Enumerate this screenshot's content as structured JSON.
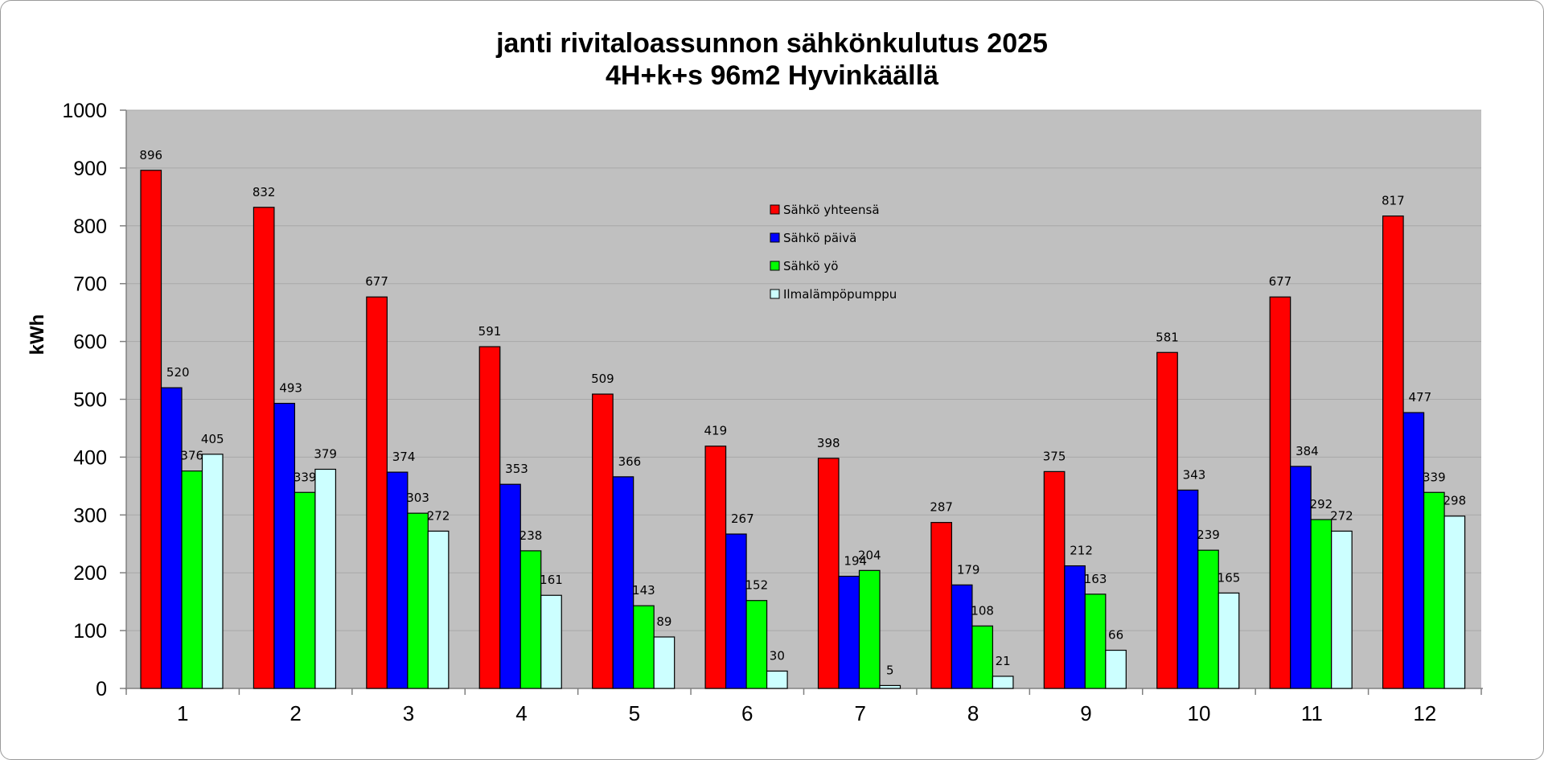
{
  "chart_data": {
    "type": "bar",
    "title": "janti rivitaloassunnon sähkönkulutus 2025",
    "subtitle": "4H+k+s 96m2 Hyvinkäällä",
    "xlabel": "",
    "ylabel": "kWh",
    "ylim": [
      0,
      1000
    ],
    "yticks": [
      0,
      100,
      200,
      300,
      400,
      500,
      600,
      700,
      800,
      900,
      1000
    ],
    "categories": [
      "1",
      "2",
      "3",
      "4",
      "5",
      "6",
      "7",
      "8",
      "9",
      "10",
      "11",
      "12"
    ],
    "series": [
      {
        "name": "Sähkö yhteensä",
        "color": "#ff0000",
        "values": [
          896,
          832,
          677,
          591,
          509,
          419,
          398,
          287,
          375,
          581,
          677,
          817
        ]
      },
      {
        "name": "Sähkö päivä",
        "color": "#0000ff",
        "values": [
          520,
          493,
          374,
          353,
          366,
          267,
          194,
          179,
          212,
          343,
          384,
          477
        ]
      },
      {
        "name": "Sähkö yö",
        "color": "#00ff00",
        "values": [
          376,
          339,
          303,
          238,
          143,
          152,
          204,
          108,
          163,
          239,
          292,
          339
        ]
      },
      {
        "name": "Ilmalämpöpumppu",
        "color": "#ccffff",
        "values": [
          405,
          379,
          272,
          161,
          89,
          30,
          5,
          21,
          66,
          165,
          272,
          298
        ]
      }
    ],
    "grid": true,
    "legend_position": "top-center",
    "plot_background": "#c0c0c0"
  }
}
